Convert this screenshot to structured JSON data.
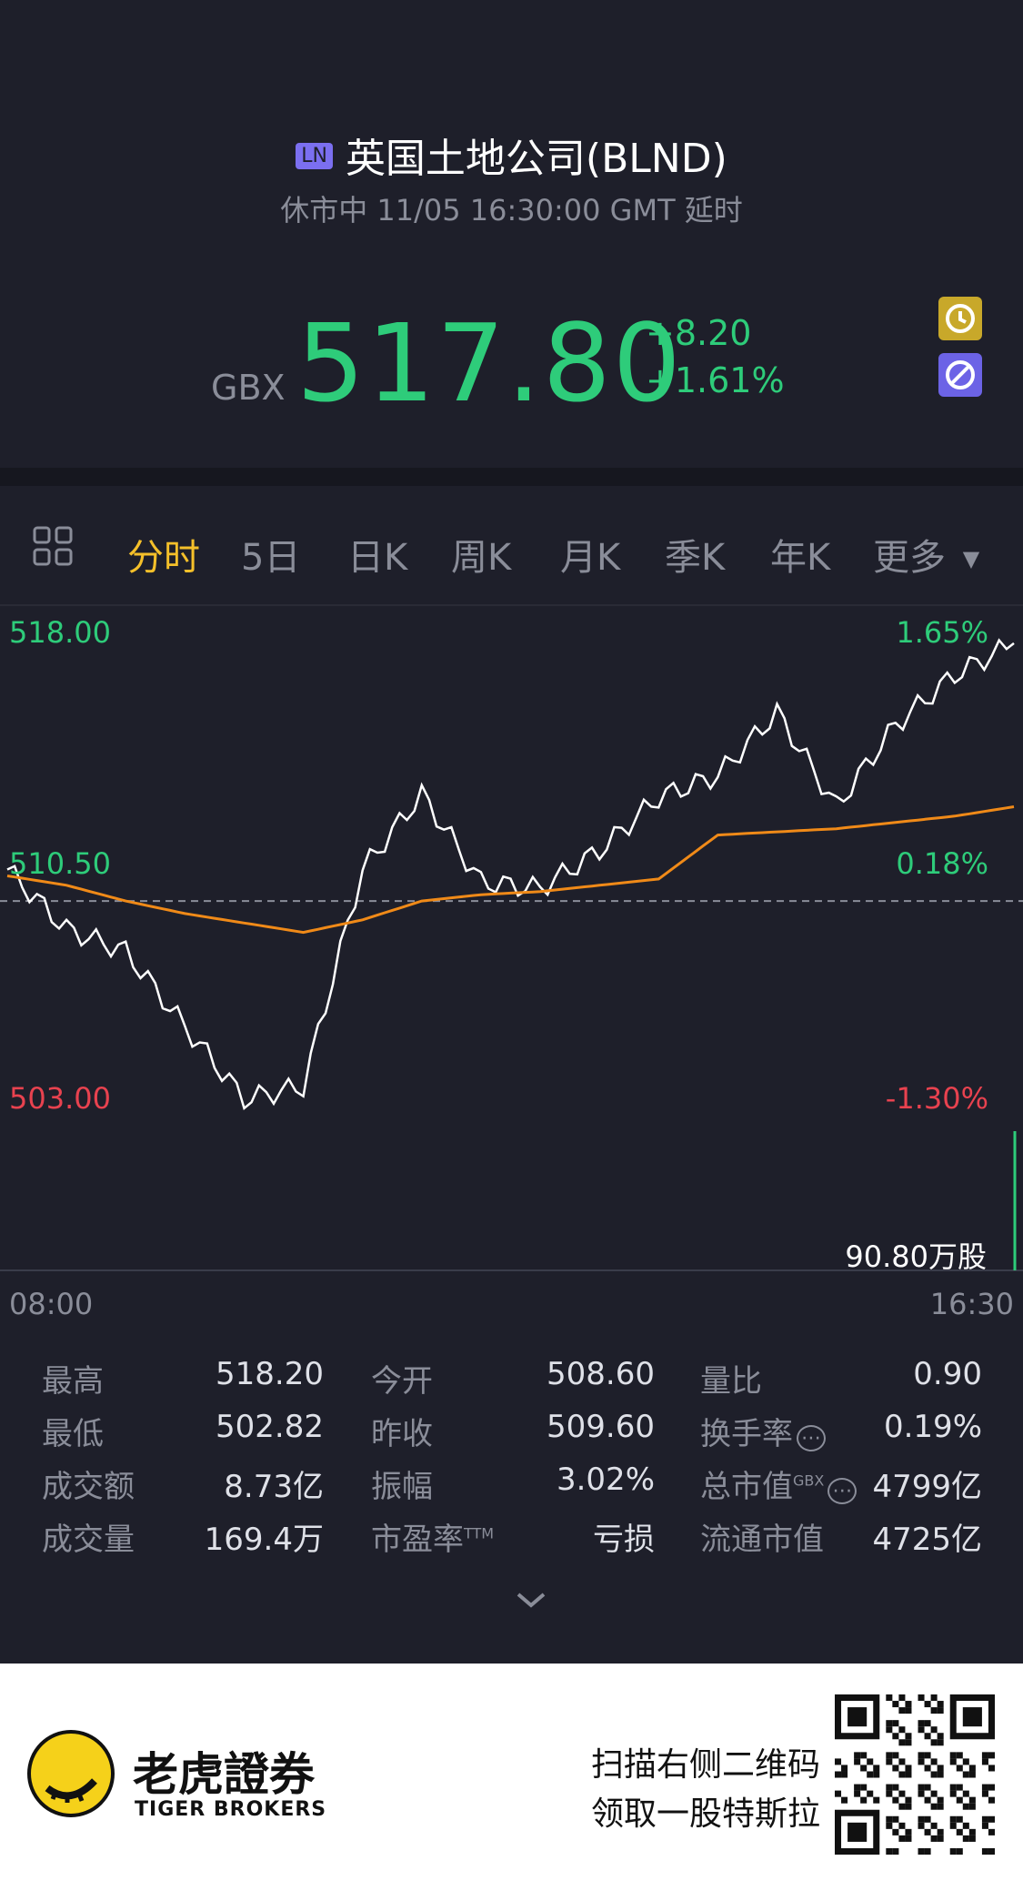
{
  "header": {
    "exchange_badge": "LN",
    "title": "英国土地公司(BLND)",
    "status": "休市中 11/05 16:30:00 GMT 延时",
    "currency": "GBX",
    "price": "517.80",
    "change_abs": "+8.20",
    "change_pct": "+1.61%",
    "price_color": "#2ecc7a"
  },
  "tabs": [
    {
      "label": "分时"
    },
    {
      "label": "5日"
    },
    {
      "label": "日K"
    },
    {
      "label": "周K"
    },
    {
      "label": "月K"
    },
    {
      "label": "季K"
    },
    {
      "label": "年K"
    },
    {
      "label": "更多"
    }
  ],
  "chart": {
    "y_top": "518.00",
    "y_mid": "510.50",
    "y_bot": "503.00",
    "pct_top": "1.65%",
    "pct_mid": "0.18%",
    "pct_bot": "-1.30%",
    "volume_label": "90.80万股",
    "x_start": "08:00",
    "x_end": "16:30"
  },
  "chart_data": {
    "type": "line",
    "title": "",
    "xlabel": "",
    "ylabel": "",
    "ylim": [
      503.0,
      518.0
    ],
    "x": [
      "08:00",
      "08:30",
      "09:00",
      "09:30",
      "10:00",
      "10:30",
      "11:00",
      "11:30",
      "12:00",
      "12:30",
      "13:00",
      "13:30",
      "14:00",
      "14:30",
      "15:00",
      "15:30",
      "16:00",
      "16:30"
    ],
    "series": [
      {
        "values": [
          510.6,
          508.7,
          508.0,
          505.6,
          503.3,
          503.7,
          510.6,
          513.0,
          510.2,
          510.0,
          511.2,
          512.9,
          513.6,
          515.6,
          512.6,
          515.2,
          516.8,
          517.8
        ],
        "color": "#ffffff"
      },
      {
        "values": [
          510.4,
          510.1,
          509.6,
          509.2,
          508.9,
          508.6,
          509.0,
          509.6,
          509.8,
          509.9,
          510.1,
          510.3,
          511.7,
          511.8,
          511.9,
          512.1,
          512.3,
          512.6
        ],
        "color": "#f08a18"
      }
    ],
    "reference_line": 509.6
  },
  "stats": [
    {
      "label": "最高",
      "value": "518.20"
    },
    {
      "label": "今开",
      "value": "508.60"
    },
    {
      "label": "量比",
      "value": "0.90"
    },
    {
      "label": "最低",
      "value": "502.82"
    },
    {
      "label": "昨收",
      "value": "509.60"
    },
    {
      "label": "换手率",
      "value": "0.19%"
    },
    {
      "label": "成交额",
      "value": "8.73亿"
    },
    {
      "label": "振幅",
      "value": "3.02%"
    },
    {
      "label": "总市值",
      "value": "4799亿",
      "sup": "GBX"
    },
    {
      "label": "成交量",
      "value": "169.4万"
    },
    {
      "label": "市盈率",
      "value": "亏损",
      "sup": "TTM"
    },
    {
      "label": "流通市值",
      "value": "4725亿"
    }
  ],
  "footer": {
    "brand_cn": "老虎證券",
    "brand_en": "TIGER BROKERS",
    "promo_line1": "扫描右侧二维码",
    "promo_line2": "领取一股特斯拉"
  }
}
